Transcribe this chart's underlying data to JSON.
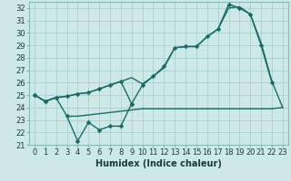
{
  "xlabel": "Humidex (Indice chaleur)",
  "x": [
    0,
    1,
    2,
    3,
    4,
    5,
    6,
    7,
    8,
    9,
    10,
    11,
    12,
    13,
    14,
    15,
    16,
    17,
    18,
    19,
    20,
    21,
    22,
    23
  ],
  "line_upper_markers": [
    25.0,
    24.5,
    24.8,
    24.9,
    25.1,
    25.2,
    25.5,
    25.8,
    26.1,
    24.3,
    25.8,
    26.5,
    27.3,
    28.8,
    28.9,
    28.9,
    29.7,
    30.3,
    32.3,
    32.0,
    31.5,
    29.0,
    26.0,
    null
  ],
  "line_mid": [
    25.0,
    24.5,
    24.8,
    24.9,
    25.1,
    25.2,
    25.5,
    25.8,
    26.1,
    26.4,
    25.9,
    26.5,
    27.2,
    28.8,
    28.9,
    28.9,
    29.7,
    30.3,
    32.0,
    32.1,
    31.5,
    29.2,
    26.1,
    24.0
  ],
  "line_lower_markers": [
    25.0,
    24.5,
    24.8,
    23.3,
    21.3,
    22.8,
    22.2,
    22.5,
    22.5,
    24.3,
    null,
    null,
    null,
    null,
    null,
    null,
    null,
    null,
    null,
    null,
    null,
    null,
    null,
    null
  ],
  "line_flat": [
    null,
    null,
    null,
    23.3,
    23.3,
    23.4,
    23.5,
    23.6,
    23.7,
    23.8,
    23.9,
    23.9,
    23.9,
    23.9,
    23.9,
    23.9,
    23.9,
    23.9,
    23.9,
    23.9,
    23.9,
    23.9,
    23.9,
    24.0
  ],
  "ylim": [
    21,
    32.5
  ],
  "yticks": [
    21,
    22,
    23,
    24,
    25,
    26,
    27,
    28,
    29,
    30,
    31,
    32
  ],
  "bg_color": "#cce9e7",
  "grid_color": "#aacfcc",
  "line_color": "#1a6b66",
  "line_width": 1.0,
  "marker_size": 2.8,
  "tick_fontsize": 6.0,
  "label_fontsize": 7.0
}
